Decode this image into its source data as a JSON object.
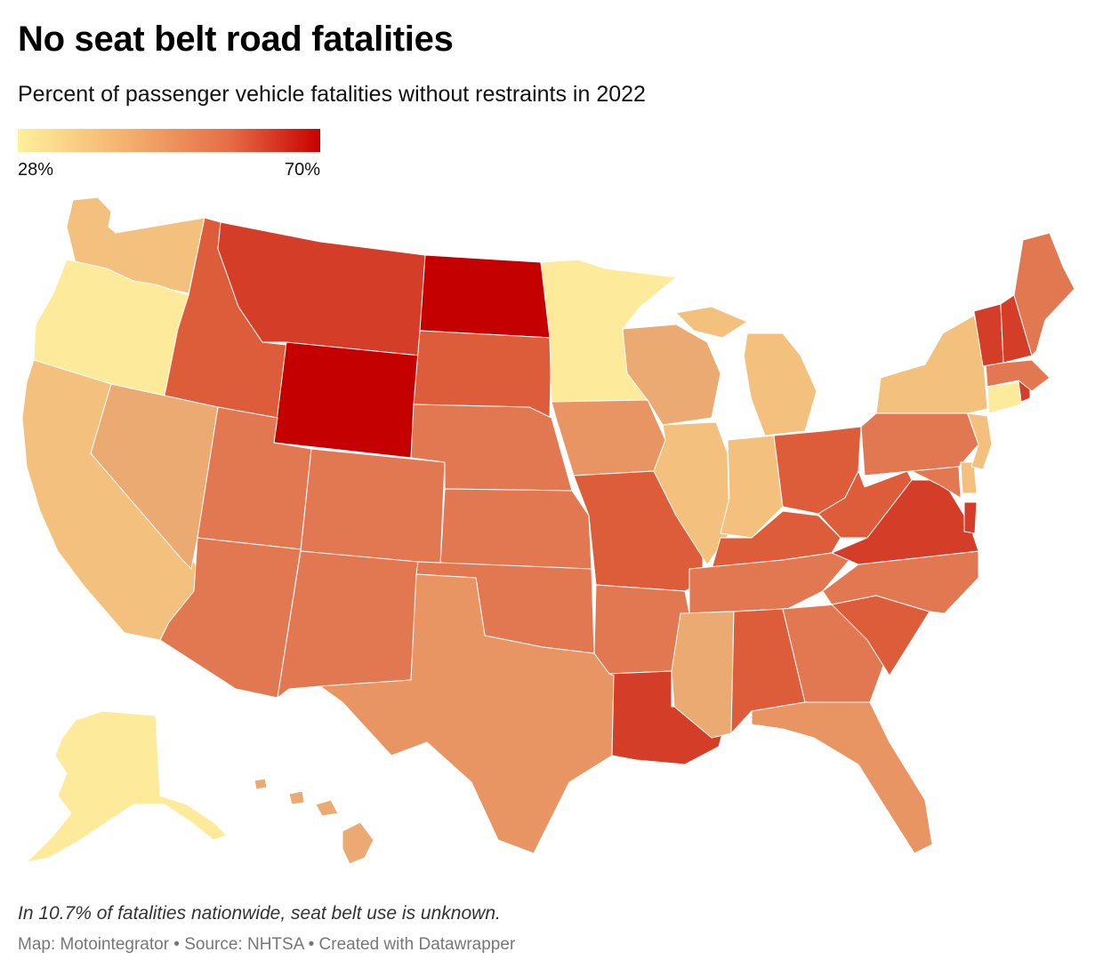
{
  "header": {
    "title": "No seat belt road fatalities",
    "subtitle": "Percent of passenger vehicle fatalities without restraints in 2022"
  },
  "legend": {
    "min_label": "28%",
    "max_label": "70%",
    "gradient_colors": [
      "#fff09b",
      "#f4b26f",
      "#e66d47",
      "#c80000"
    ]
  },
  "map_data": {
    "type": "choropleth",
    "scale_min": 28,
    "scale_max": 70,
    "levels": {
      "lightest": "#fdeb9b",
      "light": "#f3c07d",
      "light_orange": "#ebaa72",
      "orange": "#e89463",
      "mid": "#e17852",
      "mid_dark": "#df6a47",
      "dark": "#dd5d3a",
      "darker": "#d43d27",
      "darkest": "#c40000"
    },
    "states": [
      {
        "state": "WA",
        "level": "light"
      },
      {
        "state": "OR",
        "level": "lightest"
      },
      {
        "state": "CA",
        "level": "light"
      },
      {
        "state": "NV",
        "level": "light_orange"
      },
      {
        "state": "ID",
        "level": "dark"
      },
      {
        "state": "MT",
        "level": "darker"
      },
      {
        "state": "WY",
        "level": "darkest"
      },
      {
        "state": "UT",
        "level": "mid"
      },
      {
        "state": "AZ",
        "level": "mid"
      },
      {
        "state": "CO",
        "level": "mid"
      },
      {
        "state": "NM",
        "level": "mid"
      },
      {
        "state": "ND",
        "level": "darkest"
      },
      {
        "state": "SD",
        "level": "dark"
      },
      {
        "state": "NE",
        "level": "mid"
      },
      {
        "state": "KS",
        "level": "mid"
      },
      {
        "state": "OK",
        "level": "mid"
      },
      {
        "state": "TX",
        "level": "orange"
      },
      {
        "state": "MN",
        "level": "lightest"
      },
      {
        "state": "IA",
        "level": "orange"
      },
      {
        "state": "MO",
        "level": "dark"
      },
      {
        "state": "AR",
        "level": "mid"
      },
      {
        "state": "LA",
        "level": "darker"
      },
      {
        "state": "WI",
        "level": "light_orange"
      },
      {
        "state": "IL",
        "level": "light"
      },
      {
        "state": "MI",
        "level": "light"
      },
      {
        "state": "IN",
        "level": "light"
      },
      {
        "state": "OH",
        "level": "dark"
      },
      {
        "state": "KY",
        "level": "dark"
      },
      {
        "state": "TN",
        "level": "mid"
      },
      {
        "state": "MS",
        "level": "light_orange"
      },
      {
        "state": "AL",
        "level": "dark"
      },
      {
        "state": "GA",
        "level": "mid"
      },
      {
        "state": "FL",
        "level": "orange"
      },
      {
        "state": "SC",
        "level": "dark"
      },
      {
        "state": "NC",
        "level": "mid"
      },
      {
        "state": "VA",
        "level": "darker"
      },
      {
        "state": "WV",
        "level": "dark"
      },
      {
        "state": "PA",
        "level": "mid"
      },
      {
        "state": "NY",
        "level": "light"
      },
      {
        "state": "VT",
        "level": "darker"
      },
      {
        "state": "NH",
        "level": "darker"
      },
      {
        "state": "ME",
        "level": "mid"
      },
      {
        "state": "MA",
        "level": "mid"
      },
      {
        "state": "RI",
        "level": "darker"
      },
      {
        "state": "CT",
        "level": "lightest"
      },
      {
        "state": "NJ",
        "level": "light"
      },
      {
        "state": "DE",
        "level": "light"
      },
      {
        "state": "MD",
        "level": "mid"
      },
      {
        "state": "DC",
        "level": "darker"
      },
      {
        "state": "AK",
        "level": "lightest"
      },
      {
        "state": "HI",
        "level": "light_orange"
      }
    ]
  },
  "footer": {
    "note": "In 10.7% of fatalities nationwide, seat belt use is unknown.",
    "credits": "Map: Motointegrator • Source: NHTSA • Created with Datawrapper"
  }
}
